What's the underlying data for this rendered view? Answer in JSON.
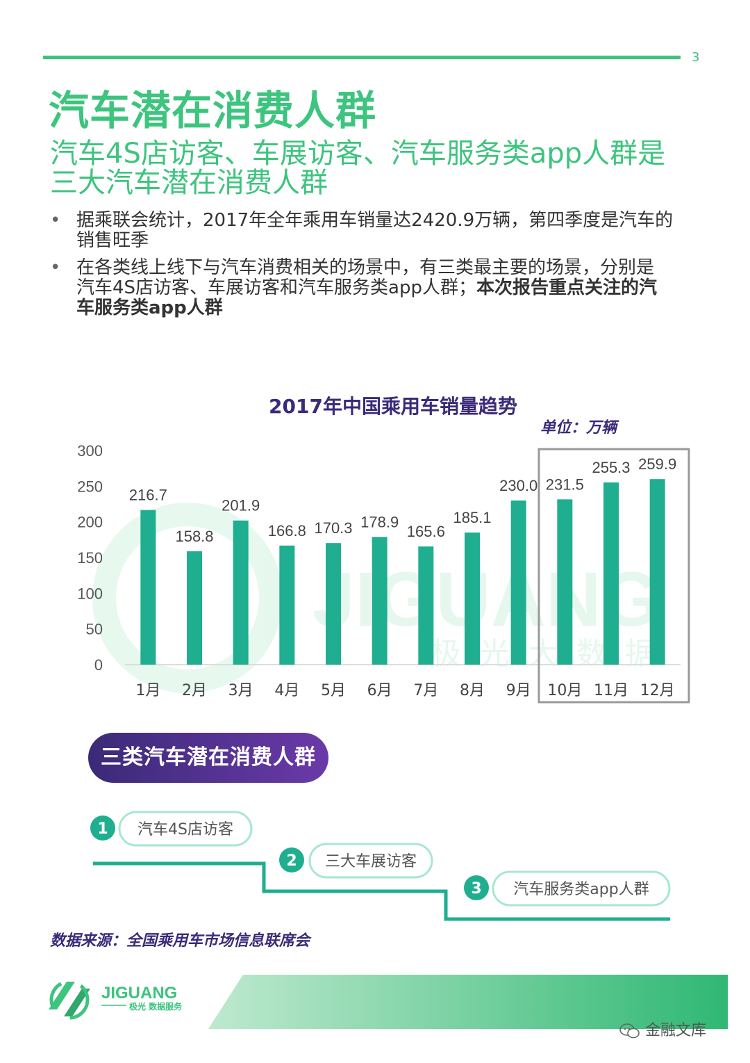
{
  "page_number": "3",
  "title": "汽车潜在消费人群",
  "subtitle_lines": [
    "汽车4S店访客、车展访客、汽车服务类app人群是",
    "三大汽车潜在消费人群"
  ],
  "bullets": [
    {
      "lines": [
        "据乘联会统计，2017年全年乘用车销量达2420.9万辆，第四季度是汽车的",
        "销售旺季"
      ],
      "bold": ""
    },
    {
      "lines": [
        "在各类线上线下与汽车消费相关的场景中，有三类最主要的场景，分别是",
        "汽车4S店访客、车展访客和汽车服务类app人群；"
      ],
      "bold_1": "本次报告重点关注的汽",
      "bold_2": "车服务类app人群"
    }
  ],
  "chart_data": {
    "type": "bar",
    "title": "2017年中国乘用车销量趋势",
    "unit_label": "单位：万辆",
    "categories": [
      "1月",
      "2月",
      "3月",
      "4月",
      "5月",
      "6月",
      "7月",
      "8月",
      "9月",
      "10月",
      "11月",
      "12月"
    ],
    "values": [
      216.7,
      158.8,
      201.9,
      166.8,
      170.3,
      178.9,
      165.6,
      185.1,
      230.0,
      231.5,
      255.3,
      259.9
    ],
    "value_labels": [
      "216.7",
      "158.8",
      "201.9",
      "166.8",
      "170.3",
      "178.9",
      "165.6",
      "185.1",
      "230.0",
      "231.5",
      "255.3",
      "259.9"
    ],
    "yticks": [
      "0",
      "50",
      "100",
      "150",
      "200",
      "250",
      "300"
    ],
    "ylim": [
      0,
      300
    ],
    "highlight": "10月–12月",
    "bar_color": "#1fae8f",
    "watermark": [
      "JIGUANG",
      "极光大数据"
    ]
  },
  "segments": {
    "header": "三类汽车潜在消费人群",
    "items": [
      {
        "num": "1",
        "label": "汽车4S店访客"
      },
      {
        "num": "2",
        "label": "三大车展访客"
      },
      {
        "num": "3",
        "label": "汽车服务类app人群"
      }
    ]
  },
  "source": "数据来源：全国乘用车市场信息联席会",
  "logo": {
    "name": "JIGUANG",
    "tagline": "极光 数据服务"
  },
  "wechat_label": "金融文库",
  "colors": {
    "accent": "#3dc47e",
    "teal": "#1fae8f",
    "purple": "#3b2a78"
  }
}
